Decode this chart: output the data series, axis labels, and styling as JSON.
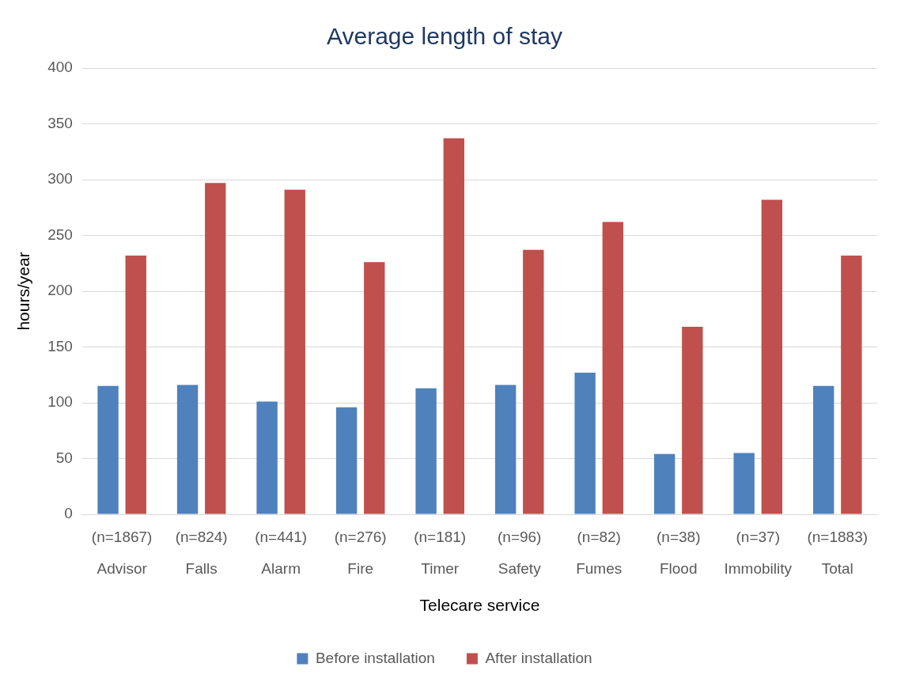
{
  "chart_data": {
    "type": "bar",
    "title": "Average length of stay",
    "xlabel": "Telecare service",
    "ylabel": "hours/year",
    "categories": [
      "(n=1867)\nAdvisor",
      "(n=824)\nFalls",
      "(n=441)\nAlarm",
      "(n=276)\nFire",
      "(n=181)\nTimer",
      "(n=96)\nSafety",
      "(n=82)\nFumes",
      "(n=38)\nFlood",
      "(n=37)\nImmobility",
      "(n=1883)\nTotal"
    ],
    "series": [
      {
        "name": "Before installation",
        "color": "#4f81bd",
        "values": [
          115,
          116,
          101,
          96,
          113,
          116,
          127,
          54,
          55,
          115
        ]
      },
      {
        "name": "After installation",
        "color": "#c0504d",
        "values": [
          232,
          297,
          291,
          226,
          337,
          237,
          262,
          168,
          282,
          232
        ]
      }
    ],
    "ylim": [
      0,
      400
    ],
    "yticks": [
      0,
      50,
      100,
      150,
      200,
      250,
      300,
      350,
      400
    ],
    "grid": "y",
    "legend": "bottom"
  }
}
